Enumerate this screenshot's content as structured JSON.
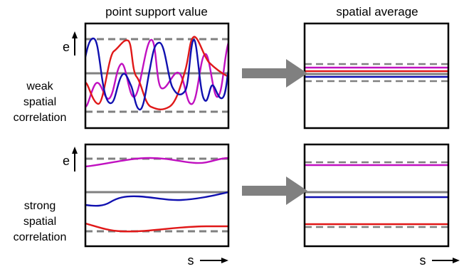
{
  "headers": {
    "left": "point support value",
    "right": "spatial average"
  },
  "rows": [
    {
      "label_lines": [
        "weak",
        "spatial",
        "correlation"
      ],
      "y_axis_label": "e"
    },
    {
      "label_lines": [
        "strong",
        "spatial",
        "correlation"
      ],
      "y_axis_label": "e"
    }
  ],
  "x_axis_label": "s",
  "colors": {
    "frame": "#000000",
    "mean_line": "#808080",
    "bound_dashes": "#808080",
    "arrow": "#808080",
    "series_blue": "#1010b0",
    "series_red": "#e01818",
    "series_magenta": "#c010c0"
  },
  "icons": {
    "process_arrow": "right-arrow-icon",
    "axis_up_arrow": "up-arrow-icon",
    "axis_right_arrow": "right-arrow-icon"
  }
}
